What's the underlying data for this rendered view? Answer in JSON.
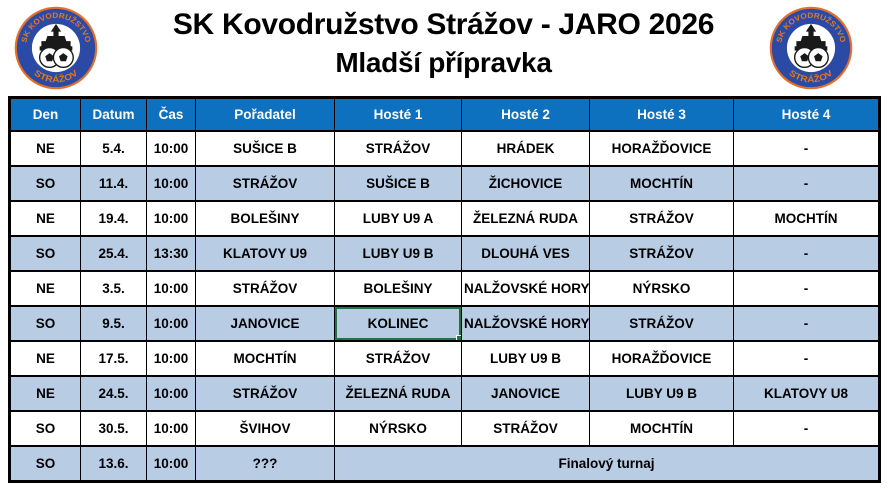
{
  "header": {
    "title": "SK Kovodružstvo Strážov - JARO 2026",
    "subtitle": "Mladší přípravka"
  },
  "logo": {
    "top_text": "SK KOVODRUŽSTVO",
    "bottom_text": "STRÁŽOV",
    "outline_color": "#e0702a",
    "ring_color": "#2b4aa5",
    "text_color": "#e8761f",
    "emblem": "castle-and-footballs"
  },
  "colors": {
    "header_bg": "#0e71c0",
    "header_text": "#ffffff",
    "band_row_bg": "#b8cce4",
    "row_bg": "#ffffff",
    "border": "#000000",
    "selection_green": "#217346"
  },
  "table": {
    "columns": [
      {
        "key": "den",
        "label": "Den"
      },
      {
        "key": "datum",
        "label": "Datum"
      },
      {
        "key": "cas",
        "label": "Čas"
      },
      {
        "key": "poradatel",
        "label": "Pořadatel"
      },
      {
        "key": "h1",
        "label": "Hosté 1"
      },
      {
        "key": "h2",
        "label": "Hosté 2"
      },
      {
        "key": "h3",
        "label": "Hosté 3"
      },
      {
        "key": "h4",
        "label": "Hosté 4"
      }
    ],
    "selected_cell": {
      "row": 5,
      "col": "h1"
    },
    "rows": [
      {
        "den": "NE",
        "datum": "5.4.",
        "cas": "10:00",
        "poradatel": "SUŠICE B",
        "h1": "STRÁŽOV",
        "h2": "HRÁDEK",
        "h3": "HORAŽĎOVICE",
        "h4": "-"
      },
      {
        "den": "SO",
        "datum": "11.4.",
        "cas": "10:00",
        "poradatel": "STRÁŽOV",
        "h1": "SUŠICE B",
        "h2": "ŽICHOVICE",
        "h3": "MOCHTÍN",
        "h4": "-"
      },
      {
        "den": "NE",
        "datum": "19.4.",
        "cas": "10:00",
        "poradatel": "BOLEŠINY",
        "h1": "LUBY U9 A",
        "h2": "ŽELEZNÁ RUDA",
        "h3": "STRÁŽOV",
        "h4": "MOCHTÍN"
      },
      {
        "den": "SO",
        "datum": "25.4.",
        "cas": "13:30",
        "poradatel": "KLATOVY U9",
        "h1": "LUBY U9 B",
        "h2": "DLOUHÁ VES",
        "h3": "STRÁŽOV",
        "h4": "-"
      },
      {
        "den": "NE",
        "datum": "3.5.",
        "cas": "10:00",
        "poradatel": "STRÁŽOV",
        "h1": "BOLEŠINY",
        "h2": "NALŽOVSKÉ HORY",
        "h3": "NÝRSKO",
        "h4": "-"
      },
      {
        "den": "SO",
        "datum": "9.5.",
        "cas": "10:00",
        "poradatel": "JANOVICE",
        "h1": "KOLINEC",
        "h2": "NALŽOVSKÉ HORY",
        "h3": "STRÁŽOV",
        "h4": "-"
      },
      {
        "den": "NE",
        "datum": "17.5.",
        "cas": "10:00",
        "poradatel": "MOCHTÍN",
        "h1": "STRÁŽOV",
        "h2": "LUBY U9 B",
        "h3": "HORAŽĎOVICE",
        "h4": "-"
      },
      {
        "den": "NE",
        "datum": "24.5.",
        "cas": "10:00",
        "poradatel": "STRÁŽOV",
        "h1": "ŽELEZNÁ RUDA",
        "h2": "JANOVICE",
        "h3": "LUBY U9 B",
        "h4": "KLATOVY U8"
      },
      {
        "den": "SO",
        "datum": "30.5.",
        "cas": "10:00",
        "poradatel": "ŠVIHOV",
        "h1": "NÝRSKO",
        "h2": "STRÁŽOV",
        "h3": "MOCHTÍN",
        "h4": "-"
      },
      {
        "den": "SO",
        "datum": "13.6.",
        "cas": "10:00",
        "poradatel": "???",
        "note": "Finalový turnaj"
      }
    ]
  }
}
